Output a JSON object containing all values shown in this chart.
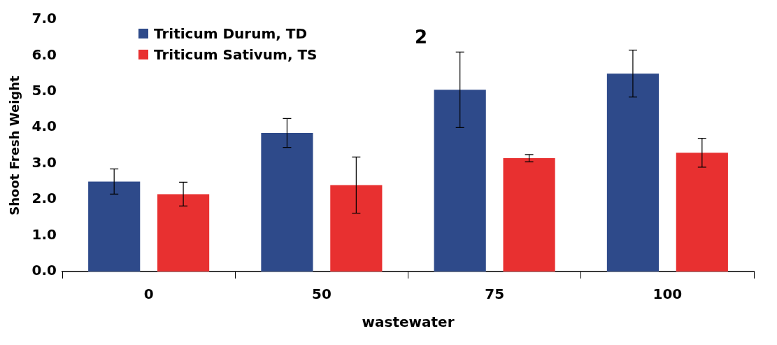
{
  "chart_data": {
    "type": "bar",
    "xlabel": "wastewater",
    "ylabel": "Shoot Fresh Weight",
    "categories": [
      "0",
      "50",
      "75",
      "100"
    ],
    "series": [
      {
        "name": "Triticum Durum, TD",
        "color": "#2e4a8a",
        "values": [
          2.5,
          3.85,
          5.05,
          5.5
        ],
        "errors": [
          0.35,
          0.4,
          1.05,
          0.65
        ]
      },
      {
        "name": "Triticum Sativum, TS",
        "color": "#e83030",
        "values": [
          2.15,
          2.4,
          3.15,
          3.3
        ],
        "errors": [
          0.33,
          0.78,
          0.1,
          0.4
        ]
      }
    ],
    "ylim": [
      0,
      7
    ],
    "yticks": [
      {
        "value": 0,
        "label": "0.0"
      },
      {
        "value": 1,
        "label": "1.0"
      },
      {
        "value": 2,
        "label": "2.0"
      },
      {
        "value": 3,
        "label": "3.0"
      },
      {
        "value": 4,
        "label": "4.0"
      },
      {
        "value": 5,
        "label": "5.0"
      },
      {
        "value": 6,
        "label": "6.0"
      },
      {
        "value": 7,
        "label": "7.0"
      }
    ],
    "grid": false,
    "legend": "top left",
    "annotations": [
      "2"
    ]
  }
}
